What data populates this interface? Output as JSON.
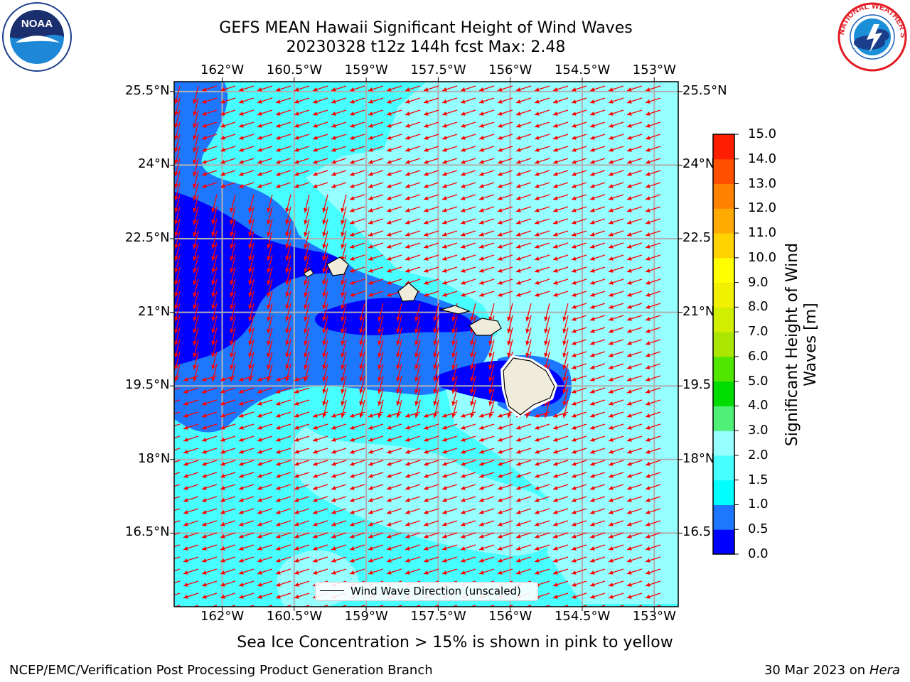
{
  "header": {
    "title_line1": "GEFS MEAN Hawaii Significant Height of Wind Waves",
    "title_line2": "20230328 t12z 144h fcst   Max: 2.48"
  },
  "logos": {
    "noaa": {
      "name": "noaa-logo",
      "text": "NOAA"
    },
    "nws": {
      "name": "national-weather-service-logo",
      "text": "NATIONAL WEATHER SERVICE"
    }
  },
  "map": {
    "lon_ticks": [
      "162°W",
      "160.5°W",
      "159°W",
      "157.5°W",
      "156°W",
      "154.5°W",
      "153°W"
    ],
    "lat_ticks_left": [
      "25.5°N",
      "24°N",
      "22.5°N",
      "21°N",
      "19.5°N",
      "18°N",
      "16.5°N"
    ],
    "lat_ticks_right": [
      "25.5°N",
      "24°N",
      "22.5",
      "21°N",
      "19.5",
      "18°N",
      "16.5"
    ],
    "lon_values": [
      -162,
      -160.5,
      -159,
      -157.5,
      -156,
      -154.5,
      -153
    ],
    "lat_values": [
      25.5,
      24,
      22.5,
      21,
      19.5,
      18,
      16.5
    ],
    "extent": {
      "lon": [
        -163,
        -152.5
      ],
      "lat": [
        15,
        25.7
      ]
    },
    "legend_label": "Wind Wave Direction (unscaled)",
    "arrow_color": "#ff0000"
  },
  "colorbar": {
    "title_line1": "Significant Height of Wind",
    "title_line2": "Waves [m]",
    "levels": [
      "0.0",
      "0.5",
      "1.0",
      "1.5",
      "2.0",
      "3.0",
      "4.0",
      "5.0",
      "6.0",
      "7.0",
      "8.0",
      "9.0",
      "10.0",
      "11.0",
      "12.0",
      "13.0",
      "14.0",
      "15.0"
    ],
    "colors": [
      "#0000ff",
      "#1e78ff",
      "#00ffff",
      "#47ffff",
      "#96ffff",
      "#50f078",
      "#00dc00",
      "#50e600",
      "#aae600",
      "#d2ee00",
      "#f0f000",
      "#ffff00",
      "#ffd200",
      "#ffaa00",
      "#ff8200",
      "#ff5000",
      "#ff1e00"
    ]
  },
  "chart_data": {
    "type": "heatmap",
    "variable": "Significant Height of Wind Waves",
    "units": "m",
    "forecast": "20230328 t12z 144h fcst",
    "max": 2.48,
    "wave_direction": "from ENE toward WSW across most of the domain, from NNE toward SSW in the lee of the islands"
  },
  "footer": {
    "note": "Sea Ice Concentration > 15% is shown in pink to yellow",
    "credit_left": "NCEP/EMC/Verification Post Processing Product Generation Branch",
    "credit_date": "30 Mar 2023 on",
    "credit_machine": "Hera"
  }
}
